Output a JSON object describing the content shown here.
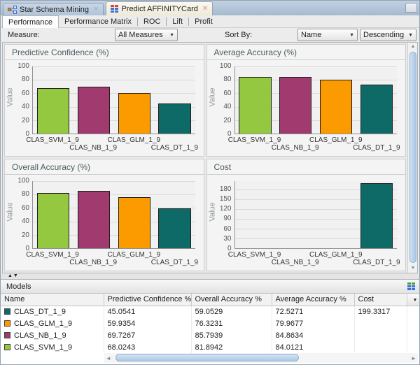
{
  "doctabs": [
    {
      "label": "Star Schema Mining"
    },
    {
      "label": "Predict AFFINITYCard"
    }
  ],
  "subtabs": {
    "items": [
      {
        "label": "Performance"
      },
      {
        "label": "Performance Matrix"
      },
      {
        "label": "ROC"
      },
      {
        "label": "Lift"
      },
      {
        "label": "Profit"
      }
    ]
  },
  "controls": {
    "measure_label": "Measure:",
    "measure_value": "All Measures",
    "sortby_label": "Sort By:",
    "sort_field_value": "Name",
    "sort_order_value": "Descending"
  },
  "chart_data": [
    {
      "type": "bar",
      "title": "Predictive Confidence (%)",
      "ylabel": "Value",
      "categories": [
        "CLAS_SVM_1_9",
        "CLAS_NB_1_9",
        "CLAS_GLM_1_9",
        "CLAS_DT_1_9"
      ],
      "values": [
        68.0243,
        69.7267,
        59.9354,
        45.0541
      ],
      "colors": [
        "#94c840",
        "#a13a6e",
        "#fb9b00",
        "#0d6a66"
      ],
      "ylim": [
        0,
        100
      ],
      "yticks": [
        0,
        20,
        40,
        60,
        80,
        100
      ],
      "grid": true,
      "legend": "none"
    },
    {
      "type": "bar",
      "title": "Average Accuracy (%)",
      "ylabel": "Value",
      "categories": [
        "CLAS_SVM_1_9",
        "CLAS_NB_1_9",
        "CLAS_GLM_1_9",
        "CLAS_DT_1_9"
      ],
      "values": [
        84.0121,
        84.8634,
        79.9677,
        72.5271
      ],
      "colors": [
        "#94c840",
        "#a13a6e",
        "#fb9b00",
        "#0d6a66"
      ],
      "ylim": [
        0,
        100
      ],
      "yticks": [
        0,
        20,
        40,
        60,
        80,
        100
      ],
      "grid": true,
      "legend": "none"
    },
    {
      "type": "bar",
      "title": "Overall Accuracy (%)",
      "ylabel": "Value",
      "categories": [
        "CLAS_SVM_1_9",
        "CLAS_NB_1_9",
        "CLAS_GLM_1_9",
        "CLAS_DT_1_9"
      ],
      "values": [
        81.8942,
        85.7939,
        76.3231,
        59.0529
      ],
      "colors": [
        "#94c840",
        "#a13a6e",
        "#fb9b00",
        "#0d6a66"
      ],
      "ylim": [
        0,
        100
      ],
      "yticks": [
        0,
        20,
        40,
        60,
        80,
        100
      ],
      "grid": true,
      "legend": "none"
    },
    {
      "type": "bar",
      "title": "Cost",
      "ylabel": "Value",
      "categories": [
        "CLAS_SVM_1_9",
        "CLAS_NB_1_9",
        "CLAS_GLM_1_9",
        "CLAS_DT_1_9"
      ],
      "values": [
        null,
        null,
        null,
        199.3317
      ],
      "colors": [
        "#94c840",
        "#a13a6e",
        "#fb9b00",
        "#0d6a66"
      ],
      "ylim": [
        0,
        205
      ],
      "yticks": [
        0,
        30,
        60,
        90,
        120,
        150,
        180
      ],
      "grid": true,
      "legend": "none"
    }
  ],
  "models_panel": {
    "title": "Models",
    "columns": [
      "Name",
      "Predictive Confidence %",
      "Overall Accuracy %",
      "Average Accuracy %",
      "Cost"
    ],
    "rows": [
      {
        "name": "CLAS_DT_1_9",
        "color": "#0d6a66",
        "predictive_confidence": "45.0541",
        "overall_accuracy": "59.0529",
        "average_accuracy": "72.5271",
        "cost": "199.3317"
      },
      {
        "name": "CLAS_GLM_1_9",
        "color": "#fb9b00",
        "predictive_confidence": "59.9354",
        "overall_accuracy": "76.3231",
        "average_accuracy": "79.9677",
        "cost": ""
      },
      {
        "name": "CLAS_NB_1_9",
        "color": "#a13a6e",
        "predictive_confidence": "69.7267",
        "overall_accuracy": "85.7939",
        "average_accuracy": "84.8634",
        "cost": ""
      },
      {
        "name": "CLAS_SVM_1_9",
        "color": "#94c840",
        "predictive_confidence": "68.0243",
        "overall_accuracy": "81.8942",
        "average_accuracy": "84.0121",
        "cost": ""
      }
    ]
  }
}
